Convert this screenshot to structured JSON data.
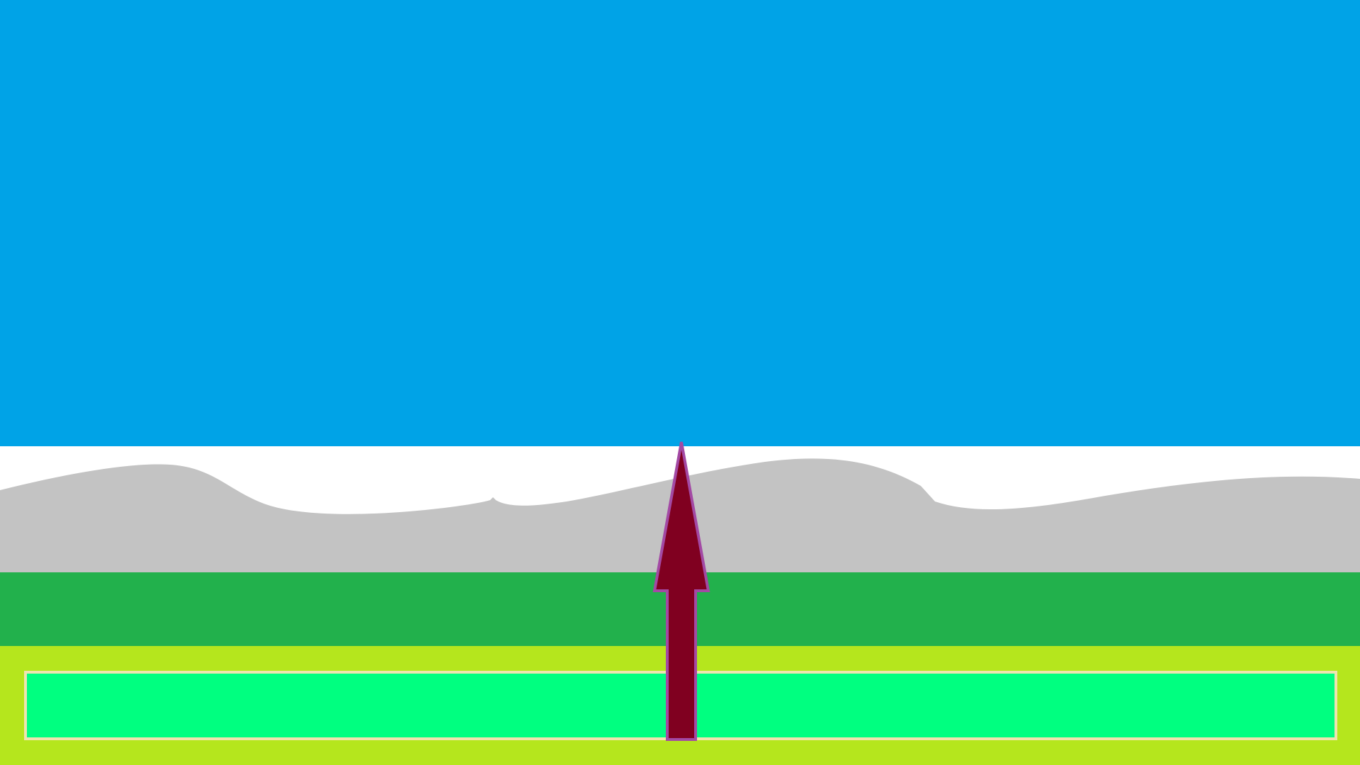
{
  "scene": {
    "colors": {
      "sky": "#00A3E7",
      "horizon_band": "#FFFFFF",
      "hills": "#C3C3C3",
      "grass_strip": "#22B14C",
      "ground": "#B5E61D",
      "power_bar_fill": "#00FF80",
      "power_bar_border": "#EFE4B0",
      "arrow_fill": "#800020",
      "arrow_outline": "#A349A4"
    },
    "aim_arrow": {
      "icon": "up-arrow-icon",
      "direction": "up"
    },
    "power_meter": {
      "level": 1.0
    }
  }
}
